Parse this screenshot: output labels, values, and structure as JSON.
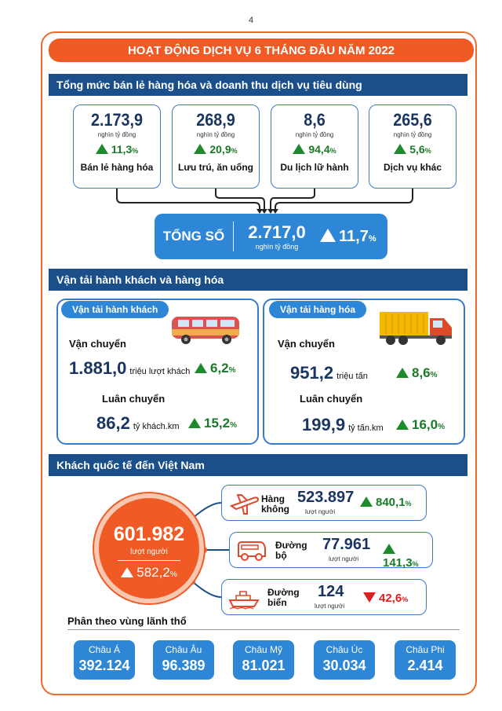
{
  "page_number": "4",
  "title": "HOẠT ĐỘNG DỊCH VỤ 6 THÁNG ĐẦU NĂM 2022",
  "retail": {
    "heading": "Tổng mức bán lẻ hàng hóa và doanh thu dịch vụ tiêu dùng",
    "cards": [
      {
        "value": "2.173,9",
        "unit": "nghìn tỷ đồng",
        "pct": "11,3",
        "label": "Bán lẻ hàng hóa"
      },
      {
        "value": "268,9",
        "unit": "nghìn tỷ đồng",
        "pct": "20,9",
        "label": "Lưu trú, ăn uống"
      },
      {
        "value": "8,6",
        "unit": "nghìn tỷ đồng",
        "pct": "94,4",
        "label": "Du lịch lữ hành"
      },
      {
        "value": "265,6",
        "unit": "nghìn tỷ đồng",
        "pct": "5,6",
        "label": "Dịch vụ khác"
      }
    ],
    "pct_sign": "%",
    "total": {
      "label": "TỔNG SỐ",
      "value": "2.717,0",
      "unit": "nghìn tỷ đồng",
      "pct": "11,7"
    }
  },
  "transport": {
    "heading": "Vận tải hành khách và hàng hóa",
    "passenger": {
      "title": "Vận tải hành khách",
      "carry_label": "Vận chuyển",
      "carry_value": "1.881,0",
      "carry_unit": "triệu lượt khách",
      "carry_pct": "6,2",
      "rotate_label": "Luân chuyển",
      "rotate_value": "86,2",
      "rotate_unit": "tỷ khách.km",
      "rotate_pct": "15,2"
    },
    "cargo": {
      "title": "Vận tải hàng hóa",
      "carry_label": "Vận chuyển",
      "carry_value": "951,2",
      "carry_unit": "triệu tấn",
      "carry_pct": "8,6",
      "rotate_label": "Luân chuyển",
      "rotate_value": "199,9",
      "rotate_unit": "tỷ tấn.km",
      "rotate_pct": "16,0"
    }
  },
  "visitors": {
    "heading": "Khách quốc tế đến Việt Nam",
    "total_value": "601.982",
    "total_unit": "lượt người",
    "total_pct": "582,2",
    "modes": [
      {
        "name": "Hàng không",
        "value": "523.897",
        "unit": "lượt người",
        "pct": "840,1",
        "dir": "up",
        "icon": "airplane-icon"
      },
      {
        "name": "Đường bộ",
        "value": "77.961",
        "unit": "lượt người",
        "pct": "141,3",
        "dir": "up",
        "icon": "van-icon"
      },
      {
        "name": "Đường biển",
        "value": "124",
        "unit": "lượt người",
        "pct": "42,6",
        "dir": "down",
        "icon": "ship-icon"
      }
    ],
    "region_title": "Phân theo vùng lãnh thổ",
    "regions": [
      {
        "name": "Châu Á",
        "value": "392.124"
      },
      {
        "name": "Châu Âu",
        "value": "96.389"
      },
      {
        "name": "Châu Mỹ",
        "value": "81.021"
      },
      {
        "name": "Châu Úc",
        "value": "30.034"
      },
      {
        "name": "Châu Phi",
        "value": "2.414"
      }
    ]
  },
  "colors": {
    "orange": "#f05a24",
    "navy": "#1a4f8a",
    "blue": "#2e86d6",
    "green": "#1e8a2e",
    "red": "#e02020"
  }
}
